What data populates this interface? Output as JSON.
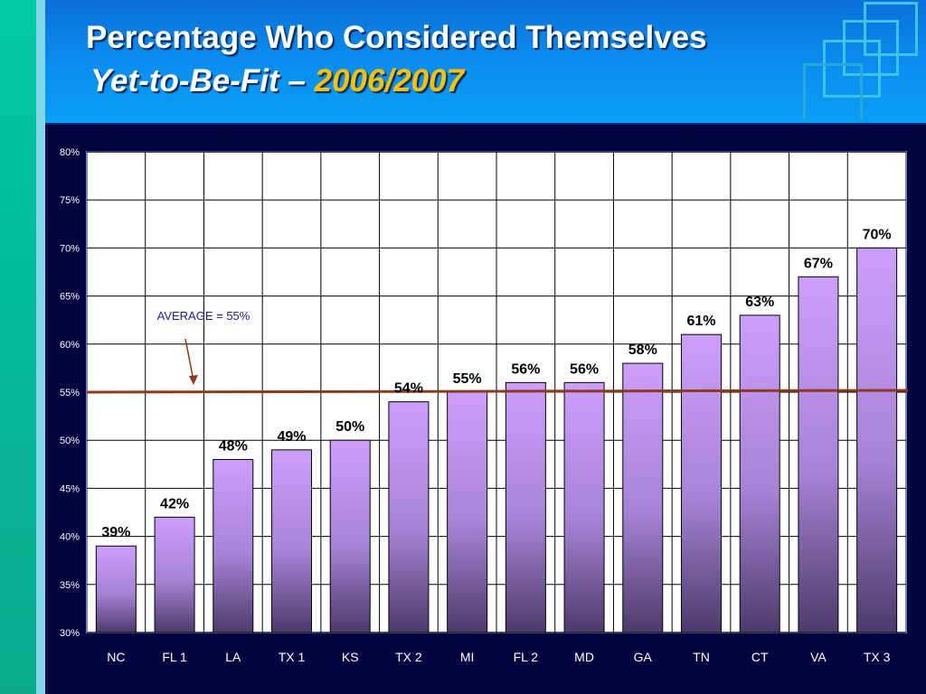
{
  "slide": {
    "title_line1": "Percentage Who Considered Themselves",
    "title_line2_italic": "Yet-to-Be-Fit",
    "title_line2_dash": "–",
    "title_line2_year": "2006/2007",
    "colors": {
      "header": "#0a8ff0",
      "background": "#00033e",
      "year": "#ffc000",
      "bar": "#c79af8",
      "average_line": "#8b3a1e",
      "annotation": "#1a1a99"
    }
  },
  "chart_data": {
    "type": "bar",
    "categories": [
      "NC",
      "FL 1",
      "LA",
      "TX 1",
      "KS",
      "TX 2",
      "MI",
      "FL 2",
      "MD",
      "GA",
      "TN",
      "CT",
      "VA",
      "TX 3"
    ],
    "values": [
      39,
      42,
      48,
      49,
      50,
      54,
      55,
      56,
      56,
      58,
      61,
      63,
      67,
      70
    ],
    "data_labels": [
      "39%",
      "42%",
      "48%",
      "49%",
      "50%",
      "54%",
      "55%",
      "56%",
      "56%",
      "58%",
      "61%",
      "63%",
      "67%",
      "70%"
    ],
    "ylim": [
      30,
      80
    ],
    "yticks": [
      30,
      35,
      40,
      45,
      50,
      55,
      60,
      65,
      70,
      75,
      80
    ],
    "ytick_labels": [
      "30%",
      "35%",
      "40%",
      "45%",
      "50%",
      "55%",
      "60%",
      "65%",
      "70%",
      "75%",
      "80%"
    ],
    "grid": true,
    "average": {
      "value": 55,
      "label": "AVERAGE = 55%"
    }
  }
}
